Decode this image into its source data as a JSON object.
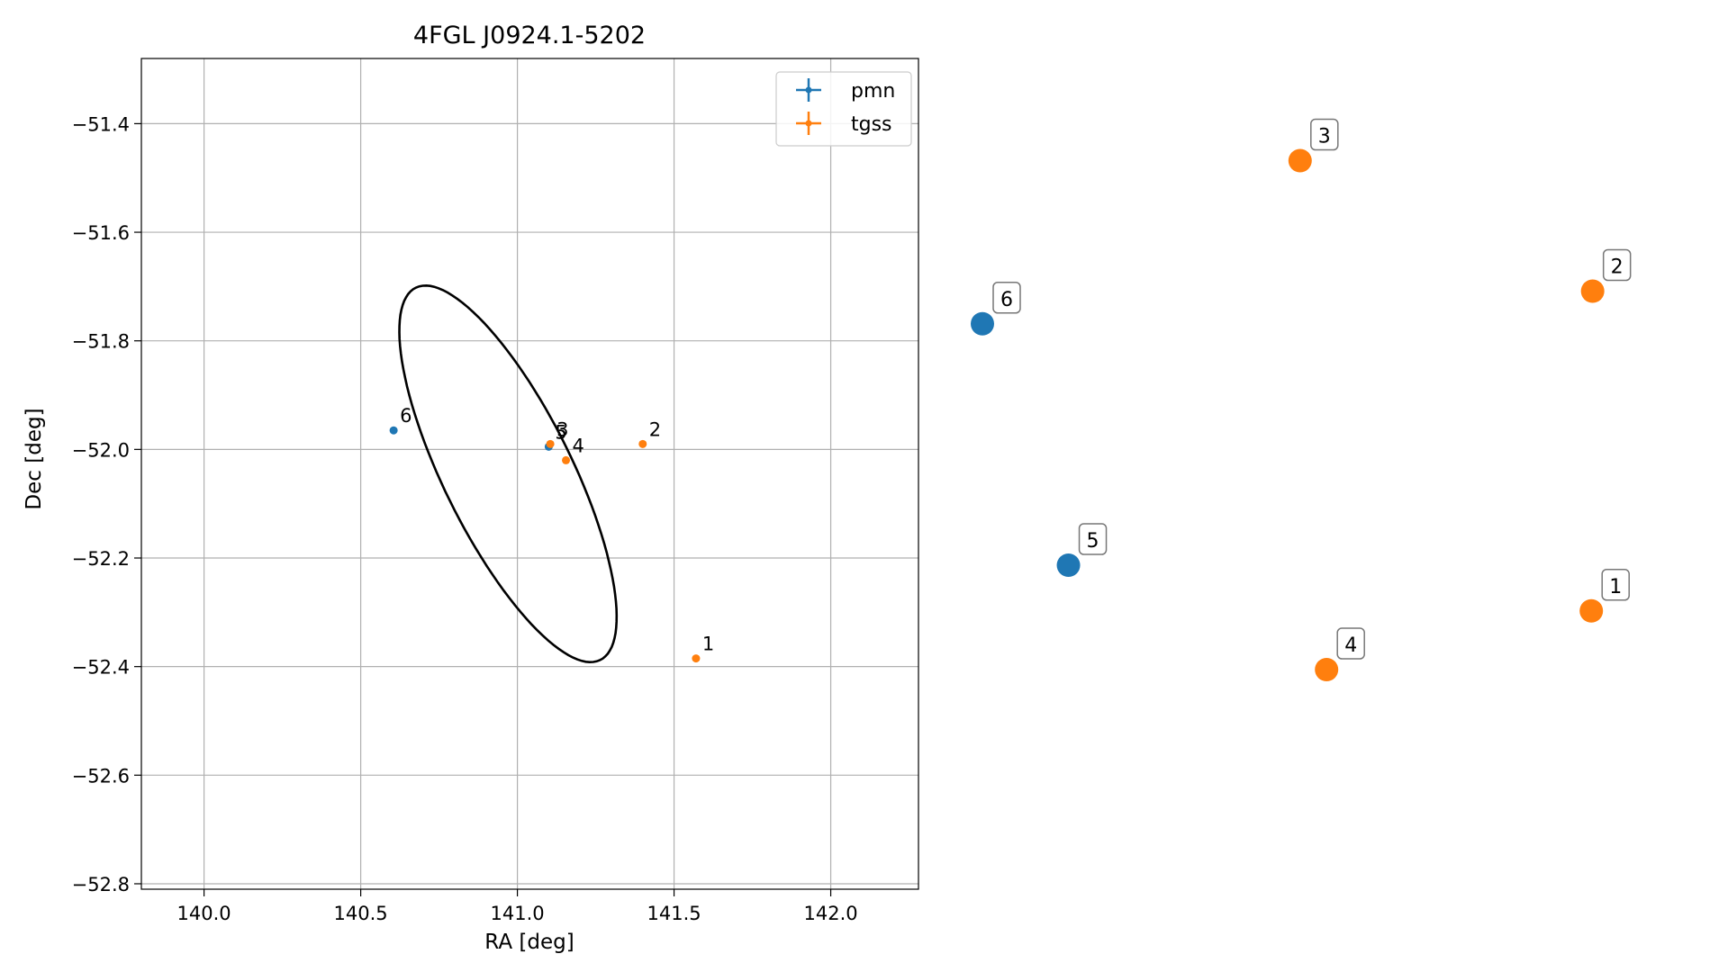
{
  "chart_data": [
    {
      "type": "scatter",
      "title": "4FGL J0924.1-5202",
      "xlabel": "RA [deg]",
      "ylabel": "Dec [deg]",
      "xlim": [
        139.8,
        142.28
      ],
      "ylim": [
        -52.81,
        -51.28
      ],
      "xticks": [
        140.0,
        140.5,
        141.0,
        141.5,
        142.0
      ],
      "xtick_labels": [
        "140.0",
        "140.5",
        "141.0",
        "141.5",
        "142.0"
      ],
      "yticks": [
        -51.4,
        -51.6,
        -51.8,
        -52.0,
        -52.2,
        -52.4,
        -52.6,
        -52.8
      ],
      "ytick_labels": [
        "−51.4",
        "−51.6",
        "−51.8",
        "−52.0",
        "−52.2",
        "−52.4",
        "−52.6",
        "−52.8"
      ],
      "grid": true,
      "legend_position": "top-right",
      "ellipse": {
        "center": [
          140.97,
          -52.045
        ],
        "semi_axes": [
          0.46,
          0.17
        ],
        "angle_deg": -45
      },
      "series": [
        {
          "name": "pmn",
          "color": "#1f77b4",
          "points": [
            {
              "label": "5",
              "x": 141.1,
              "y": -51.995
            },
            {
              "label": "6",
              "x": 140.605,
              "y": -51.965
            }
          ]
        },
        {
          "name": "tgss",
          "color": "#ff7f0e",
          "points": [
            {
              "label": "1",
              "x": 141.57,
              "y": -52.385
            },
            {
              "label": "2",
              "x": 141.4,
              "y": -51.99
            },
            {
              "label": "3",
              "x": 141.105,
              "y": -51.99
            },
            {
              "label": "4",
              "x": 141.155,
              "y": -52.02
            }
          ]
        }
      ]
    },
    {
      "type": "scatter",
      "title": "",
      "axes_visible": false,
      "xlim": [
        0,
        1
      ],
      "ylim": [
        0,
        1
      ],
      "points": [
        {
          "label": "1",
          "series": "tgss",
          "x": 0.92,
          "y": 0.25
        },
        {
          "label": "2",
          "series": "tgss",
          "x": 0.922,
          "y": 0.74
        },
        {
          "label": "3",
          "series": "tgss",
          "x": 0.48,
          "y": 0.94
        },
        {
          "label": "4",
          "series": "tgss",
          "x": 0.52,
          "y": 0.16
        },
        {
          "label": "5",
          "series": "pmn",
          "x": 0.13,
          "y": 0.32
        },
        {
          "label": "6",
          "series": "pmn",
          "x": 0.0,
          "y": 0.69
        }
      ]
    }
  ]
}
